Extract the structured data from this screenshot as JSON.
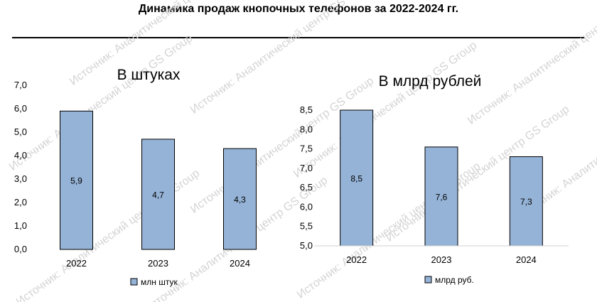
{
  "header": {
    "title": "Динамика продаж кнопочных телефонов за 2022-2024 гг."
  },
  "watermark": "Источник: Аналитический центр GS Group",
  "colors": {
    "bar": "#95b3d7",
    "bar_border": "#000000"
  },
  "chart_data": [
    {
      "type": "bar",
      "title": "В штуках",
      "categories": [
        "2022",
        "2023",
        "2024"
      ],
      "series": [
        {
          "name": "млн штук",
          "values": [
            5.9,
            4.7,
            4.3
          ]
        }
      ],
      "data_labels": [
        "5,9",
        "4,7",
        "4,3"
      ],
      "ylim": [
        0,
        7
      ],
      "yticks": [
        "0,0",
        "1,0",
        "2,0",
        "3,0",
        "4,0",
        "5,0",
        "6,0",
        "7,0"
      ],
      "grid": false,
      "legend": "bottom"
    },
    {
      "type": "bar",
      "title": "В млрд рублей",
      "categories": [
        "2022",
        "2023",
        "2024"
      ],
      "series": [
        {
          "name": "млрд руб.",
          "values": [
            8.5,
            7.55,
            7.3
          ]
        }
      ],
      "data_labels": [
        "8,5",
        "7,6",
        "7,3"
      ],
      "ylim": [
        5,
        8.5
      ],
      "yticks": [
        "5,0",
        "5,5",
        "6,0",
        "6,5",
        "7,0",
        "7,5",
        "8,0",
        "8,5"
      ],
      "grid": false,
      "legend": "bottom"
    }
  ]
}
